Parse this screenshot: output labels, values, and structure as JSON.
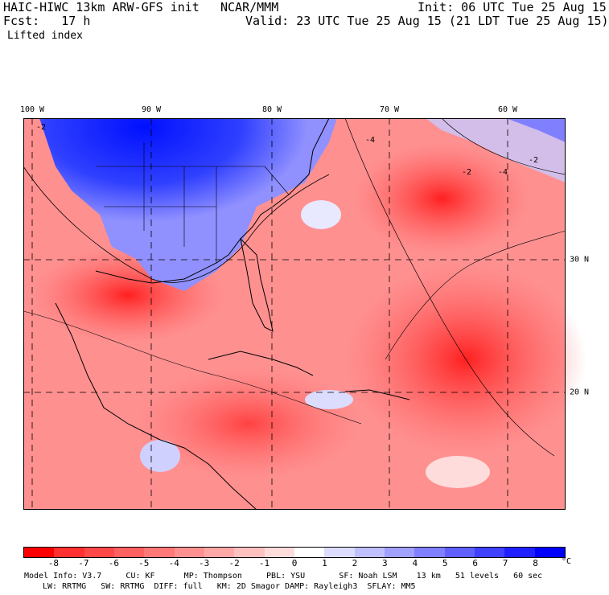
{
  "header": {
    "model": "HAIC-HIWC 13km ARW-GFS init",
    "org": "NCAR/MMM",
    "init": "Init: 06 UTC Tue 25 Aug 15",
    "fcst": "Fcst:   17 h",
    "valid": "Valid: 23 UTC Tue 25 Aug 15 (21 LDT Tue 25 Aug 15)",
    "field": "Lifted index"
  },
  "map": {
    "lon_labels": [
      "100 W",
      "90 W",
      "80 W",
      "70 W",
      "60 W"
    ],
    "lat_labels": [
      "30 N",
      "20 N"
    ],
    "contour_labels": [
      "-2",
      "-4",
      "-2",
      "-4",
      "-2"
    ]
  },
  "colorbar": {
    "colors": [
      "#ff0000",
      "#ff3030",
      "#ff4848",
      "#ff6060",
      "#ff7878",
      "#ff9090",
      "#ffa8a8",
      "#ffc0c0",
      "#ffdcdc",
      "#ffffff",
      "#dcdcff",
      "#c0c0ff",
      "#a0a0ff",
      "#8080ff",
      "#6060ff",
      "#4040ff",
      "#2020ff",
      "#0000ff"
    ],
    "ticks": [
      "-8",
      "-7",
      "-6",
      "-5",
      "-4",
      "-3",
      "-2",
      "-1",
      "0",
      "1",
      "2",
      "3",
      "4",
      "5",
      "6",
      "7",
      "8"
    ],
    "unit": "°C"
  },
  "footer": {
    "line1": "Model Info: V3.7     CU: KF      MP: Thompson     PBL: YSU       SF: Noah LSM    13 km   51 levels   60 sec",
    "line2": "LW: RRTMG   SW: RRTMG  DIFF: full   KM: 2D Smagor DAMP: Rayleigh3  SFLAY: MM5"
  }
}
